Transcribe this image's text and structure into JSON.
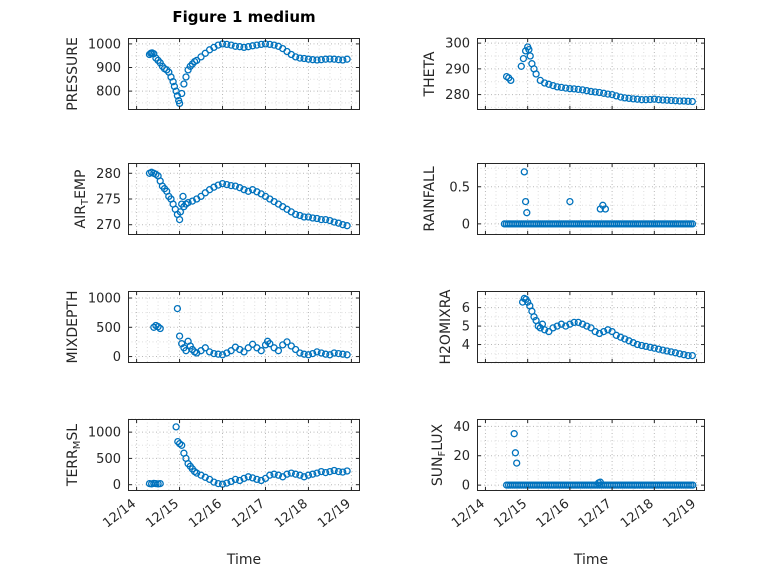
{
  "figure": {
    "title": "Figure 1 medium",
    "xlabel": "Time"
  },
  "style": {
    "marker_color": "#0072BD",
    "axis_color": "#262626",
    "grid_color": "#b8b8b8",
    "minor_grid_color": "#dddddd"
  },
  "axes": {
    "xlim": [
      13.8,
      19.2
    ],
    "x_ticks": [
      14,
      15,
      16,
      17,
      18,
      19
    ],
    "x_tick_labels": [
      "12/14",
      "12/15",
      "12/16",
      "12/17",
      "12/18",
      "12/19"
    ],
    "x_minor_step": 0.25,
    "grid": "dotted",
    "marker": "o"
  },
  "chart_data": [
    {
      "type": "scatter",
      "name": "PRESSURE",
      "ylabel": {
        "pre": "PRESSURE",
        "sub": "",
        "post": ""
      },
      "ylim": [
        720,
        1025
      ],
      "yticks": [
        800,
        900,
        1000
      ],
      "show_x_labels": false,
      "x": [
        14.3,
        14.33,
        14.36,
        14.4,
        14.45,
        14.5,
        14.55,
        14.6,
        14.65,
        14.7,
        14.75,
        14.8,
        14.85,
        14.88,
        14.92,
        14.95,
        14.98,
        15.0,
        15.05,
        15.1,
        15.15,
        15.2,
        15.25,
        15.3,
        15.35,
        15.4,
        15.5,
        15.6,
        15.7,
        15.8,
        15.9,
        16.0,
        16.1,
        16.2,
        16.3,
        16.4,
        16.5,
        16.6,
        16.7,
        16.8,
        16.9,
        17.0,
        17.1,
        17.2,
        17.3,
        17.4,
        17.5,
        17.6,
        17.7,
        17.8,
        17.9,
        18.0,
        18.1,
        18.2,
        18.3,
        18.4,
        18.5,
        18.6,
        18.7,
        18.8,
        18.9
      ],
      "y": [
        955,
        960,
        962,
        958,
        940,
        930,
        920,
        905,
        895,
        890,
        880,
        860,
        840,
        820,
        800,
        780,
        760,
        748,
        790,
        830,
        860,
        890,
        905,
        915,
        925,
        930,
        945,
        960,
        975,
        985,
        995,
        1000,
        998,
        995,
        990,
        988,
        985,
        988,
        992,
        995,
        998,
        1000,
        998,
        995,
        990,
        980,
        968,
        955,
        945,
        940,
        938,
        935,
        933,
        932,
        933,
        935,
        936,
        935,
        933,
        932,
        935
      ]
    },
    {
      "type": "scatter",
      "name": "THETA",
      "ylabel": {
        "pre": "THETA",
        "sub": "",
        "post": ""
      },
      "ylim": [
        274,
        302
      ],
      "yticks": [
        280,
        290,
        300
      ],
      "show_x_labels": false,
      "x": [
        14.5,
        14.55,
        14.6,
        14.85,
        14.9,
        14.95,
        15.0,
        15.03,
        15.06,
        15.1,
        15.15,
        15.2,
        15.3,
        15.4,
        15.5,
        15.6,
        15.7,
        15.8,
        15.9,
        16.0,
        16.1,
        16.2,
        16.3,
        16.4,
        16.5,
        16.6,
        16.7,
        16.8,
        16.9,
        17.0,
        17.1,
        17.2,
        17.3,
        17.4,
        17.5,
        17.6,
        17.7,
        17.8,
        17.9,
        18.0,
        18.1,
        18.2,
        18.3,
        18.4,
        18.5,
        18.6,
        18.7,
        18.8,
        18.9
      ],
      "y": [
        287,
        286.5,
        285.5,
        291,
        294,
        297,
        298.5,
        297.5,
        295,
        292,
        290,
        288,
        285.5,
        284.5,
        284,
        283.5,
        283,
        282.8,
        282.5,
        282.3,
        282.2,
        282,
        281.8,
        281.5,
        281.2,
        281,
        280.8,
        280.5,
        280.2,
        280,
        279.5,
        279,
        278.7,
        278.5,
        278.3,
        278.2,
        278,
        278,
        278.1,
        278.2,
        278,
        277.9,
        277.8,
        277.7,
        277.6,
        277.5,
        277.5,
        277.4,
        277.3
      ]
    },
    {
      "type": "scatter",
      "name": "AIR_TEMP",
      "ylabel": {
        "pre": "AIR",
        "sub": "T",
        "post": "EMP"
      },
      "ylim": [
        268,
        282
      ],
      "yticks": [
        270,
        275,
        280
      ],
      "show_x_labels": false,
      "x": [
        14.3,
        14.35,
        14.4,
        14.45,
        14.5,
        14.55,
        14.6,
        14.65,
        14.7,
        14.75,
        14.8,
        14.85,
        14.9,
        14.95,
        15.0,
        15.02,
        15.05,
        15.08,
        15.1,
        15.15,
        15.2,
        15.3,
        15.4,
        15.5,
        15.6,
        15.7,
        15.8,
        15.9,
        16.0,
        16.1,
        16.2,
        16.3,
        16.4,
        16.5,
        16.6,
        16.7,
        16.8,
        16.9,
        17.0,
        17.1,
        17.2,
        17.3,
        17.4,
        17.5,
        17.6,
        17.7,
        17.8,
        17.9,
        18.0,
        18.1,
        18.2,
        18.3,
        18.4,
        18.5,
        18.6,
        18.7,
        18.8,
        18.9
      ],
      "y": [
        280,
        280.2,
        280,
        279.8,
        279.5,
        278.5,
        277.5,
        277,
        276.5,
        275.5,
        275,
        274,
        273,
        272,
        271,
        272.5,
        274,
        275.5,
        273.5,
        274,
        274.3,
        274.6,
        275,
        275.5,
        276.2,
        276.8,
        277.3,
        277.7,
        278,
        277.8,
        277.6,
        277.5,
        277.2,
        276.8,
        276.5,
        276.8,
        276.4,
        276,
        275.5,
        275,
        274.5,
        274,
        273.5,
        273,
        272.5,
        272,
        271.8,
        271.5,
        271.5,
        271.3,
        271.2,
        271,
        271,
        270.8,
        270.5,
        270.3,
        270,
        269.8
      ]
    },
    {
      "type": "scatter",
      "name": "RAINFALL",
      "ylabel": {
        "pre": "RAINFALL",
        "sub": "",
        "post": ""
      },
      "ylim": [
        -0.15,
        0.82
      ],
      "yticks": [
        0,
        0.5
      ],
      "show_x_labels": false,
      "x": [
        14.92,
        14.95,
        14.98,
        16.0,
        16.72,
        16.78,
        16.84
      ],
      "y": [
        0.7,
        0.3,
        0.15,
        0.3,
        0.2,
        0.25,
        0.2
      ],
      "zero_run": {
        "from": 14.45,
        "to": 18.92,
        "step": 0.045,
        "value": 0
      }
    },
    {
      "type": "scatter",
      "name": "MIXDEPTH",
      "ylabel": {
        "pre": "MIXDEPTH",
        "sub": "",
        "post": ""
      },
      "ylim": [
        -110,
        1120
      ],
      "yticks": [
        0,
        500,
        1000
      ],
      "show_x_labels": false,
      "x": [
        14.4,
        14.45,
        14.5,
        14.55,
        14.95,
        15.0,
        15.05,
        15.1,
        15.15,
        15.2,
        15.25,
        15.3,
        15.35,
        15.4,
        15.5,
        15.6,
        15.7,
        15.8,
        15.9,
        16.0,
        16.1,
        16.2,
        16.3,
        16.4,
        16.5,
        16.6,
        16.7,
        16.8,
        16.9,
        17.0,
        17.05,
        17.1,
        17.2,
        17.3,
        17.4,
        17.5,
        17.6,
        17.7,
        17.8,
        17.9,
        18.0,
        18.1,
        18.2,
        18.3,
        18.4,
        18.5,
        18.6,
        18.7,
        18.8,
        18.9
      ],
      "y": [
        500,
        530,
        510,
        480,
        820,
        350,
        220,
        150,
        100,
        260,
        180,
        120,
        80,
        60,
        100,
        150,
        80,
        50,
        40,
        30,
        60,
        100,
        160,
        120,
        80,
        150,
        210,
        150,
        100,
        200,
        260,
        220,
        150,
        100,
        200,
        250,
        180,
        120,
        60,
        40,
        30,
        50,
        80,
        60,
        40,
        30,
        60,
        50,
        40,
        30
      ]
    },
    {
      "type": "scatter",
      "name": "H2OMIXRA",
      "ylabel": {
        "pre": "H2OMIXRA",
        "sub": "",
        "post": ""
      },
      "ylim": [
        3.0,
        6.9
      ],
      "yticks": [
        4,
        5,
        6
      ],
      "show_x_labels": false,
      "x": [
        14.88,
        14.92,
        14.96,
        15.0,
        15.05,
        15.1,
        15.15,
        15.2,
        15.25,
        15.3,
        15.35,
        15.4,
        15.5,
        15.6,
        15.7,
        15.8,
        15.9,
        16.0,
        16.1,
        16.2,
        16.3,
        16.4,
        16.5,
        16.6,
        16.7,
        16.8,
        16.9,
        17.0,
        17.1,
        17.2,
        17.3,
        17.4,
        17.5,
        17.6,
        17.7,
        17.8,
        17.9,
        18.0,
        18.1,
        18.2,
        18.3,
        18.4,
        18.5,
        18.6,
        18.7,
        18.8,
        18.9
      ],
      "y": [
        6.3,
        6.5,
        6.45,
        6.3,
        6.1,
        5.8,
        5.5,
        5.3,
        5.0,
        4.9,
        5.1,
        4.8,
        4.7,
        4.9,
        5.0,
        5.1,
        5.0,
        5.1,
        5.2,
        5.2,
        5.1,
        5.0,
        4.9,
        4.7,
        4.6,
        4.7,
        4.8,
        4.7,
        4.5,
        4.4,
        4.3,
        4.2,
        4.1,
        4.0,
        3.95,
        3.9,
        3.85,
        3.8,
        3.75,
        3.7,
        3.65,
        3.6,
        3.55,
        3.5,
        3.45,
        3.4,
        3.4
      ]
    },
    {
      "type": "scatter",
      "name": "TERR_MSL",
      "ylabel": {
        "pre": "TERR",
        "sub": "M",
        "post": "SL"
      },
      "ylim": [
        -120,
        1250
      ],
      "yticks": [
        0,
        500,
        1000
      ],
      "show_x_labels": true,
      "x": [
        14.3,
        14.35,
        14.4,
        14.45,
        14.5,
        14.55,
        14.92,
        14.96,
        15.0,
        15.05,
        15.1,
        15.15,
        15.2,
        15.25,
        15.3,
        15.35,
        15.4,
        15.5,
        15.6,
        15.7,
        15.8,
        15.9,
        16.0,
        16.1,
        16.2,
        16.3,
        16.4,
        16.5,
        16.6,
        16.7,
        16.8,
        16.9,
        17.0,
        17.1,
        17.2,
        17.3,
        17.4,
        17.5,
        17.6,
        17.7,
        17.8,
        17.9,
        18.0,
        18.1,
        18.2,
        18.3,
        18.4,
        18.5,
        18.6,
        18.7,
        18.8,
        18.9
      ],
      "y": [
        20,
        15,
        25,
        20,
        15,
        20,
        1100,
        820,
        780,
        750,
        600,
        500,
        400,
        350,
        300,
        250,
        220,
        180,
        140,
        100,
        50,
        20,
        10,
        30,
        60,
        100,
        80,
        120,
        150,
        130,
        100,
        80,
        120,
        180,
        200,
        180,
        150,
        200,
        220,
        200,
        180,
        150,
        180,
        200,
        220,
        250,
        230,
        250,
        270,
        250,
        240,
        260
      ]
    },
    {
      "type": "scatter",
      "name": "SUN_FLUX",
      "ylabel": {
        "pre": "SUN",
        "sub": "F",
        "post": "LUX"
      },
      "ylim": [
        -4,
        45
      ],
      "yticks": [
        0,
        20,
        40
      ],
      "show_x_labels": true,
      "x": [
        14.68,
        14.71,
        14.74,
        16.68,
        16.72
      ],
      "y": [
        35,
        22,
        15,
        1.5,
        2
      ],
      "zero_run": {
        "from": 14.5,
        "to": 18.92,
        "step": 0.045,
        "value": 0
      }
    }
  ]
}
